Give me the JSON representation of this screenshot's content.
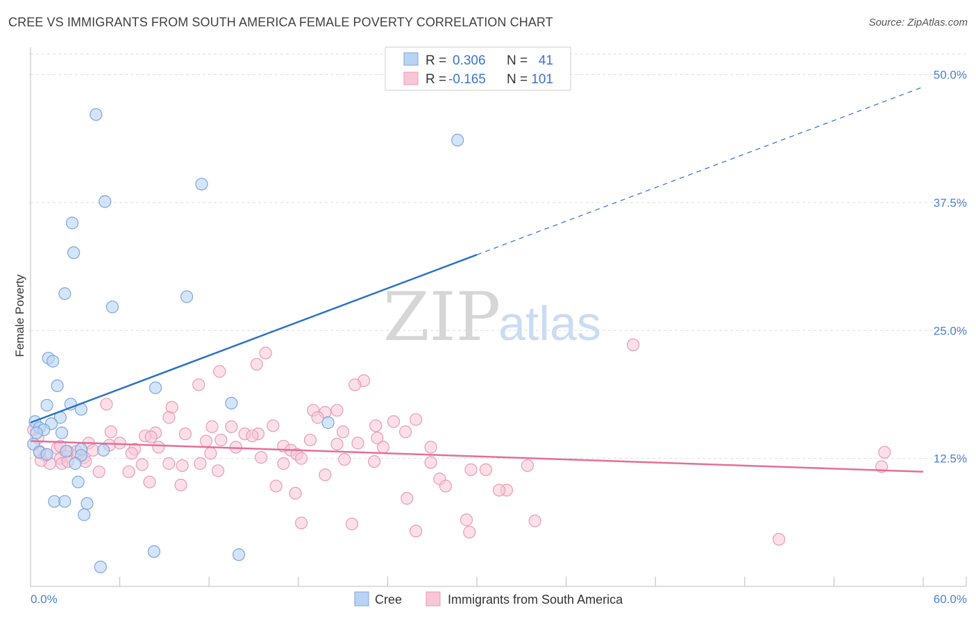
{
  "title": "CREE VS IMMIGRANTS FROM SOUTH AMERICA FEMALE POVERTY CORRELATION CHART",
  "source": "Source: ZipAtlas.com",
  "watermark": {
    "zip": "ZIP",
    "atlas": "atlas"
  },
  "colors": {
    "cree_fill": "#b9d3f3",
    "cree_stroke": "#7aa6df",
    "cree_line": "#2a6fcc",
    "imm_fill": "#f8c6d6",
    "imm_stroke": "#e99ab5",
    "imm_line": "#e46e98",
    "grid": "#dddddd",
    "tick_text": "#4a7fd0"
  },
  "legend": {
    "rows": [
      {
        "r_label": "R =",
        "r_value": "0.306",
        "n_label": "N =",
        "n_value": "41"
      },
      {
        "r_label": "R =",
        "r_value": "-0.165",
        "n_label": "N =",
        "n_value": "101"
      }
    ]
  },
  "bottom_legend": [
    "Cree",
    "Immigrants from South America"
  ],
  "chart_data": {
    "type": "scatter",
    "title": "CREE VS IMMIGRANTS FROM SOUTH AMERICA FEMALE POVERTY CORRELATION CHART",
    "xlabel": "",
    "ylabel": "Female Poverty",
    "xlim": [
      0,
      60
    ],
    "ylim": [
      0,
      52
    ],
    "x_tick_labels": [
      "0.0%",
      "60.0%"
    ],
    "y_ticks": [
      12.5,
      25.0,
      37.5,
      50.0
    ],
    "y_tick_labels": [
      "12.5%",
      "25.0%",
      "37.5%",
      "50.0%"
    ],
    "grid": true,
    "legend_position": "top-center",
    "series": [
      {
        "name": "Cree",
        "points": [
          [
            4.4,
            46.1
          ],
          [
            28.7,
            43.6
          ],
          [
            11.5,
            39.3
          ],
          [
            5.0,
            37.6
          ],
          [
            2.8,
            35.5
          ],
          [
            2.9,
            32.6
          ],
          [
            2.3,
            28.6
          ],
          [
            10.5,
            28.3
          ],
          [
            5.5,
            27.3
          ],
          [
            1.2,
            22.3
          ],
          [
            1.5,
            22.0
          ],
          [
            1.8,
            19.6
          ],
          [
            8.4,
            19.4
          ],
          [
            13.5,
            17.9
          ],
          [
            1.1,
            17.7
          ],
          [
            2.7,
            17.8
          ],
          [
            3.4,
            17.3
          ],
          [
            20.0,
            16.0
          ],
          [
            2.0,
            16.5
          ],
          [
            0.3,
            16.1
          ],
          [
            1.4,
            15.9
          ],
          [
            0.6,
            15.5
          ],
          [
            0.9,
            15.3
          ],
          [
            2.1,
            15.0
          ],
          [
            0.4,
            15.0
          ],
          [
            0.2,
            13.9
          ],
          [
            3.4,
            13.4
          ],
          [
            4.9,
            13.3
          ],
          [
            2.4,
            13.2
          ],
          [
            0.6,
            13.1
          ],
          [
            1.1,
            12.9
          ],
          [
            3.4,
            12.8
          ],
          [
            3.0,
            12.0
          ],
          [
            3.2,
            10.2
          ],
          [
            1.6,
            8.3
          ],
          [
            2.3,
            8.3
          ],
          [
            3.8,
            8.1
          ],
          [
            3.6,
            7.0
          ],
          [
            8.3,
            3.4
          ],
          [
            14.0,
            3.1
          ],
          [
            4.7,
            1.9
          ]
        ]
      },
      {
        "name": "Immigrants from South America",
        "points": [
          [
            40.5,
            23.6
          ],
          [
            15.8,
            22.8
          ],
          [
            15.2,
            21.7
          ],
          [
            12.7,
            21.0
          ],
          [
            22.4,
            20.1
          ],
          [
            21.8,
            19.7
          ],
          [
            11.3,
            19.7
          ],
          [
            5.1,
            17.8
          ],
          [
            9.5,
            17.5
          ],
          [
            19.0,
            17.2
          ],
          [
            20.6,
            17.2
          ],
          [
            19.8,
            17.0
          ],
          [
            19.3,
            16.5
          ],
          [
            25.9,
            16.3
          ],
          [
            24.4,
            16.1
          ],
          [
            9.3,
            16.5
          ],
          [
            16.3,
            15.7
          ],
          [
            12.2,
            15.6
          ],
          [
            13.5,
            15.6
          ],
          [
            23.2,
            15.7
          ],
          [
            21.0,
            15.1
          ],
          [
            25.2,
            15.1
          ],
          [
            5.4,
            15.1
          ],
          [
            8.4,
            15.0
          ],
          [
            14.4,
            14.9
          ],
          [
            15.3,
            14.9
          ],
          [
            14.9,
            14.7
          ],
          [
            10.4,
            14.9
          ],
          [
            7.7,
            14.7
          ],
          [
            8.1,
            14.6
          ],
          [
            23.3,
            14.5
          ],
          [
            18.8,
            14.3
          ],
          [
            12.8,
            14.3
          ],
          [
            11.8,
            14.2
          ],
          [
            3.9,
            14.0
          ],
          [
            6.0,
            14.0
          ],
          [
            20.6,
            13.9
          ],
          [
            22.0,
            14.0
          ],
          [
            5.3,
            13.8
          ],
          [
            17.0,
            13.7
          ],
          [
            8.6,
            13.6
          ],
          [
            13.8,
            13.6
          ],
          [
            26.9,
            13.6
          ],
          [
            23.7,
            13.6
          ],
          [
            1.8,
            13.5
          ],
          [
            7.0,
            13.4
          ],
          [
            17.5,
            13.3
          ],
          [
            3.1,
            13.2
          ],
          [
            0.6,
            13.2
          ],
          [
            2.5,
            13.2
          ],
          [
            6.8,
            13.0
          ],
          [
            17.9,
            12.9
          ],
          [
            12.1,
            13.0
          ],
          [
            18.2,
            12.5
          ],
          [
            4.2,
            13.3
          ],
          [
            2.4,
            12.7
          ],
          [
            21.1,
            12.4
          ],
          [
            2.0,
            12.5
          ],
          [
            3.6,
            12.6
          ],
          [
            15.5,
            12.6
          ],
          [
            23.1,
            12.2
          ],
          [
            2.1,
            12.0
          ],
          [
            17.0,
            12.0
          ],
          [
            1.3,
            12.0
          ],
          [
            2.5,
            12.2
          ],
          [
            3.7,
            12.2
          ],
          [
            7.5,
            11.9
          ],
          [
            9.3,
            12.0
          ],
          [
            11.4,
            12.0
          ],
          [
            10.2,
            11.8
          ],
          [
            26.9,
            12.1
          ],
          [
            33.4,
            11.8
          ],
          [
            57.4,
            13.1
          ],
          [
            30.6,
            11.4
          ],
          [
            29.6,
            11.4
          ],
          [
            12.6,
            11.3
          ],
          [
            6.6,
            11.2
          ],
          [
            19.8,
            10.9
          ],
          [
            4.6,
            11.2
          ],
          [
            27.5,
            10.5
          ],
          [
            27.9,
            9.8
          ],
          [
            8.0,
            10.2
          ],
          [
            10.1,
            9.9
          ],
          [
            16.5,
            9.8
          ],
          [
            17.8,
            9.1
          ],
          [
            32.0,
            9.4
          ],
          [
            31.5,
            9.4
          ],
          [
            25.3,
            8.6
          ],
          [
            29.3,
            6.5
          ],
          [
            33.9,
            6.4
          ],
          [
            18.2,
            6.2
          ],
          [
            21.6,
            6.1
          ],
          [
            25.9,
            5.4
          ],
          [
            29.5,
            5.3
          ],
          [
            50.3,
            4.6
          ],
          [
            57.2,
            11.7
          ],
          [
            0.2,
            15.3
          ],
          [
            0.5,
            14.5
          ],
          [
            1.0,
            12.8
          ],
          [
            0.7,
            12.3
          ],
          [
            2.0,
            13.7
          ]
        ]
      }
    ],
    "trend_lines": [
      {
        "series": "Cree",
        "x": [
          0,
          30
        ],
        "y": [
          16.0,
          32.4
        ],
        "dashed_extension_to": [
          60,
          48.8
        ]
      },
      {
        "series": "Immigrants from South America",
        "x": [
          0,
          60
        ],
        "y": [
          14.2,
          11.2
        ]
      }
    ]
  }
}
